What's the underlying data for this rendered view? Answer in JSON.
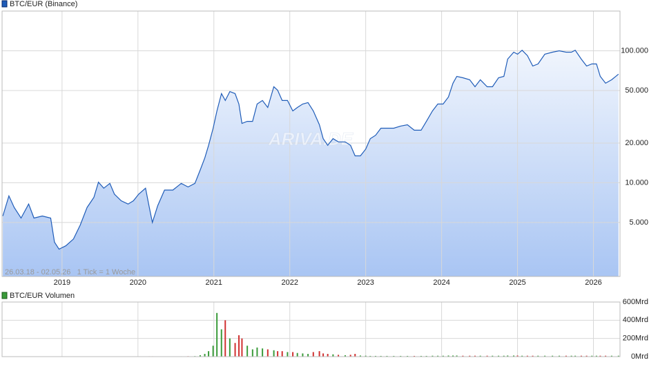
{
  "chart_data": [
    {
      "type": "line",
      "annotation": "26.03.18 - 02.05.26   1 Tick = 1 Woche",
      "watermark": "ARIVA.DE",
      "log": true,
      "grid": true,
      "xlim": [
        2018.21,
        2026.35
      ],
      "xticks": [
        2019,
        2020,
        2021,
        2022,
        2023,
        2024,
        2025,
        2026
      ],
      "ylim": [
        1950,
        200000
      ],
      "yticks": [
        {
          "value": 5000,
          "label": "5.000"
        },
        {
          "value": 10000,
          "label": "10.000"
        },
        {
          "value": 20000,
          "label": "20.000"
        },
        {
          "value": 50000,
          "label": "50.000"
        },
        {
          "value": 100000,
          "label": "100.000"
        }
      ],
      "x": [
        2018.22,
        2018.3,
        2018.37,
        2018.46,
        2018.56,
        2018.63,
        2018.74,
        2018.85,
        2018.9,
        2018.96,
        2019.05,
        2019.15,
        2019.24,
        2019.33,
        2019.42,
        2019.48,
        2019.55,
        2019.63,
        2019.69,
        2019.78,
        2019.87,
        2019.94,
        2020.01,
        2020.1,
        2020.15,
        2020.19,
        2020.26,
        2020.35,
        2020.46,
        2020.57,
        2020.66,
        2020.75,
        2020.82,
        2020.88,
        2020.93,
        2020.99,
        2021.04,
        2021.1,
        2021.15,
        2021.21,
        2021.28,
        2021.33,
        2021.37,
        2021.44,
        2021.51,
        2021.57,
        2021.64,
        2021.71,
        2021.79,
        2021.84,
        2021.9,
        2021.97,
        2022.04,
        2022.1,
        2022.17,
        2022.24,
        2022.31,
        2022.39,
        2022.44,
        2022.5,
        2022.57,
        2022.64,
        2022.73,
        2022.8,
        2022.86,
        2022.93,
        2023.0,
        2023.06,
        2023.13,
        2023.2,
        2023.28,
        2023.37,
        2023.46,
        2023.55,
        2023.64,
        2023.73,
        2023.8,
        2023.88,
        2023.95,
        2024.02,
        2024.09,
        2024.15,
        2024.2,
        2024.28,
        2024.37,
        2024.44,
        2024.51,
        2024.6,
        2024.67,
        2024.75,
        2024.82,
        2024.87,
        2024.95,
        2025.0,
        2025.06,
        2025.13,
        2025.2,
        2025.27,
        2025.36,
        2025.46,
        2025.55,
        2025.64,
        2025.71,
        2025.76,
        2025.84,
        2025.91,
        2025.98,
        2026.04,
        2026.09,
        2026.16,
        2026.24,
        2026.33
      ],
      "series": [
        {
          "name": "BTC/EUR (Binance)",
          "color": "#1f5cb8",
          "area_top": "#f0f5fd",
          "area_bottom": "#a9c5f3",
          "values": [
            5600,
            7960,
            6500,
            5400,
            6900,
            5400,
            5600,
            5400,
            3550,
            3140,
            3330,
            3750,
            4780,
            6500,
            7760,
            10100,
            9100,
            9900,
            8200,
            7300,
            6900,
            7300,
            8200,
            9100,
            6500,
            5000,
            6700,
            8800,
            8800,
            9900,
            9300,
            9900,
            12500,
            15400,
            19200,
            25900,
            35000,
            47400,
            42000,
            49100,
            47400,
            39500,
            28200,
            29200,
            29200,
            39500,
            42000,
            37200,
            53400,
            50300,
            42000,
            42000,
            35000,
            37200,
            39500,
            40500,
            35000,
            27500,
            21600,
            19200,
            21600,
            20400,
            20400,
            19200,
            16000,
            16000,
            18000,
            21600,
            22900,
            25900,
            25900,
            25900,
            26900,
            27500,
            25000,
            25000,
            29200,
            35000,
            39500,
            39500,
            44700,
            56800,
            64000,
            62500,
            60300,
            53400,
            60300,
            53400,
            53400,
            62500,
            64000,
            86500,
            97600,
            94200,
            101000,
            91900,
            76700,
            79500,
            94200,
            97600,
            100000,
            97600,
            97600,
            101000,
            86500,
            76700,
            79500,
            79500,
            64000,
            56800,
            60300,
            66500
          ]
        }
      ]
    },
    {
      "type": "bar",
      "grid": true,
      "xlim": [
        2018.21,
        2026.35
      ],
      "ylim": [
        0,
        600
      ],
      "yticks": [
        {
          "value": 0,
          "label": "0Mrd"
        },
        {
          "value": 200,
          "label": "200Mrd"
        },
        {
          "value": 400,
          "label": "400Mrd"
        },
        {
          "value": 600,
          "label": "600Mrd"
        }
      ],
      "x": [
        2018.22,
        2018.3,
        2018.37,
        2018.46,
        2018.56,
        2018.63,
        2018.74,
        2018.85,
        2018.9,
        2018.96,
        2019.05,
        2019.15,
        2019.24,
        2019.33,
        2019.42,
        2019.48,
        2019.55,
        2019.63,
        2019.69,
        2019.78,
        2019.87,
        2019.94,
        2020.01,
        2020.1,
        2020.15,
        2020.19,
        2020.26,
        2020.35,
        2020.46,
        2020.57,
        2020.66,
        2020.75,
        2020.82,
        2020.88,
        2020.93,
        2020.99,
        2021.04,
        2021.1,
        2021.15,
        2021.21,
        2021.28,
        2021.33,
        2021.37,
        2021.44,
        2021.51,
        2021.57,
        2021.64,
        2021.71,
        2021.79,
        2021.84,
        2021.9,
        2021.97,
        2022.04,
        2022.1,
        2022.17,
        2022.24,
        2022.31,
        2022.39,
        2022.44,
        2022.5,
        2022.57,
        2022.64,
        2022.73,
        2022.8,
        2022.86,
        2022.93,
        2023.0,
        2023.06,
        2023.13,
        2023.2,
        2023.28,
        2023.37,
        2023.46,
        2023.55,
        2023.64,
        2023.73,
        2023.8,
        2023.88,
        2023.95,
        2024.02,
        2024.09,
        2024.15,
        2024.2,
        2024.28,
        2024.37,
        2024.44,
        2024.51,
        2024.6,
        2024.67,
        2024.75,
        2024.82,
        2024.87,
        2024.95,
        2025.0,
        2025.06,
        2025.13,
        2025.2,
        2025.27,
        2025.36,
        2025.46,
        2025.55,
        2025.64,
        2025.71,
        2025.76,
        2025.84,
        2025.91,
        2025.98,
        2026.04,
        2026.09,
        2026.16,
        2026.24,
        2026.33
      ],
      "series": [
        {
          "name": "BTC/EUR Volumen",
          "color": "#3a9b3a",
          "down_color": "#d03030",
          "values": [
            0,
            0,
            0,
            0,
            0,
            0,
            0,
            0,
            0,
            0,
            0,
            0,
            0,
            0,
            0,
            0,
            0,
            0,
            0,
            0,
            0,
            0,
            2,
            3,
            4,
            4,
            3,
            3,
            3,
            4,
            5,
            6,
            15,
            30,
            60,
            120,
            480,
            300,
            400,
            200,
            150,
            235,
            200,
            120,
            80,
            100,
            90,
            80,
            70,
            60,
            60,
            50,
            50,
            40,
            35,
            30,
            50,
            60,
            35,
            30,
            25,
            20,
            15,
            20,
            30,
            12,
            10,
            8,
            8,
            8,
            8,
            8,
            8,
            8,
            8,
            8,
            8,
            10,
            10,
            10,
            12,
            12,
            12,
            10,
            10,
            10,
            10,
            10,
            10,
            10,
            10,
            12,
            12,
            12,
            10,
            10,
            10,
            10,
            10,
            10,
            10,
            10,
            10,
            10,
            10,
            10,
            10,
            10,
            10,
            10,
            10,
            10
          ]
        }
      ]
    }
  ]
}
